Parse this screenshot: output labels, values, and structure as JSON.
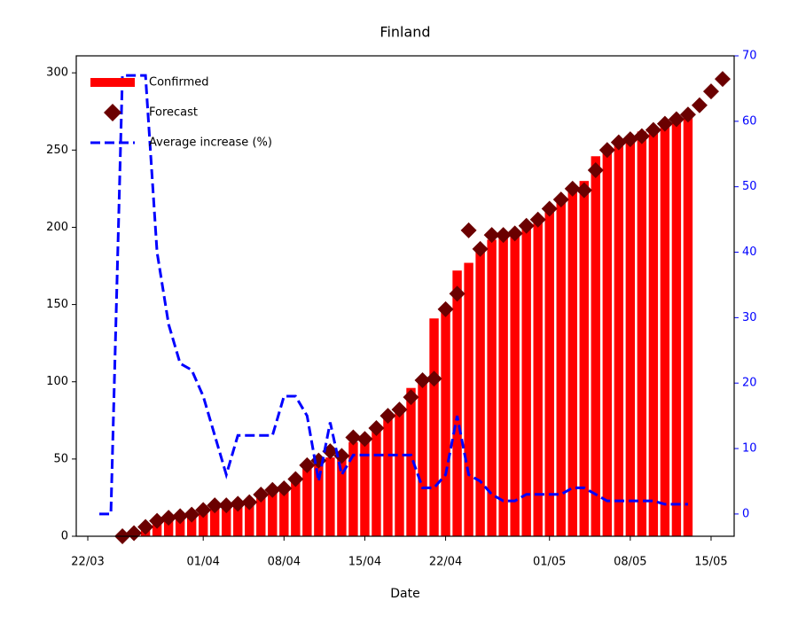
{
  "chart_data": {
    "type": "combo",
    "title": "Finland",
    "xlabel": "Date",
    "xlim": [
      "21/03",
      "17/05"
    ],
    "xticks": [
      "22/03",
      "01/04",
      "08/04",
      "15/04",
      "22/04",
      "01/05",
      "08/05",
      "15/05"
    ],
    "ylim": [
      0,
      311
    ],
    "yticks": [
      0,
      50,
      100,
      150,
      200,
      250,
      300
    ],
    "y2lim": [
      -3.4,
      70
    ],
    "y2ticks": [
      0,
      10,
      20,
      30,
      40,
      50,
      60,
      70
    ],
    "legend": "upper left",
    "series": [
      {
        "name": "Confirmed",
        "type": "bar",
        "color": "#ff0000",
        "x": [
          "25/03",
          "26/03",
          "27/03",
          "28/03",
          "29/03",
          "30/03",
          "31/03",
          "01/04",
          "02/04",
          "03/04",
          "04/04",
          "05/04",
          "06/04",
          "07/04",
          "08/04",
          "09/04",
          "10/04",
          "11/04",
          "12/04",
          "13/04",
          "14/04",
          "15/04",
          "16/04",
          "17/04",
          "18/04",
          "19/04",
          "20/04",
          "21/04",
          "22/04",
          "23/04",
          "24/04",
          "25/04",
          "26/04",
          "27/04",
          "28/04",
          "29/04",
          "30/04",
          "01/05",
          "02/05",
          "03/05",
          "04/05",
          "05/05",
          "06/05",
          "07/05",
          "08/05",
          "09/05",
          "10/05",
          "11/05",
          "12/05",
          "13/05"
        ],
        "values": [
          1,
          3,
          6,
          10,
          12,
          13,
          14,
          17,
          20,
          20,
          20,
          22,
          27,
          30,
          32,
          38,
          45,
          49,
          51,
          54,
          61,
          64,
          72,
          79,
          84,
          96,
          102,
          141,
          149,
          172,
          177,
          187,
          192,
          193,
          196,
          201,
          206,
          211,
          218,
          225,
          230,
          246,
          252,
          256,
          259,
          262,
          265,
          268,
          271,
          275
        ]
      },
      {
        "name": "Forecast",
        "type": "scatter",
        "color": "#6b0000",
        "x": [
          "25/03",
          "26/03",
          "27/03",
          "28/03",
          "29/03",
          "30/03",
          "31/03",
          "01/04",
          "02/04",
          "03/04",
          "04/04",
          "05/04",
          "06/04",
          "07/04",
          "08/04",
          "09/04",
          "10/04",
          "11/04",
          "12/04",
          "13/04",
          "14/04",
          "15/04",
          "16/04",
          "17/04",
          "18/04",
          "19/04",
          "20/04",
          "21/04",
          "22/04",
          "23/04",
          "24/04",
          "25/04",
          "26/04",
          "27/04",
          "28/04",
          "29/04",
          "30/04",
          "01/05",
          "02/05",
          "03/05",
          "04/05",
          "05/05",
          "06/05",
          "07/05",
          "08/05",
          "09/05",
          "10/05",
          "11/05",
          "12/05",
          "13/05",
          "14/05",
          "15/05",
          "16/05"
        ],
        "values": [
          0,
          2,
          6,
          10,
          12,
          13,
          14,
          17,
          20,
          20,
          21,
          22,
          27,
          30,
          31,
          37,
          46,
          49,
          55,
          52,
          64,
          63,
          70,
          78,
          82,
          90,
          101,
          102,
          147,
          157,
          198,
          186,
          195,
          195,
          196,
          201,
          205,
          212,
          218,
          225,
          224,
          237,
          250,
          255,
          257,
          259,
          263,
          267,
          270,
          273,
          279,
          288,
          296
        ]
      },
      {
        "name": "Average increase (%)",
        "type": "line",
        "axis": "y2",
        "color": "#0000ff",
        "x": [
          "23/03",
          "24/03",
          "25/03",
          "26/03",
          "27/03",
          "28/03",
          "29/03",
          "30/03",
          "31/03",
          "01/04",
          "02/04",
          "03/04",
          "04/04",
          "05/04",
          "06/04",
          "07/04",
          "08/04",
          "09/04",
          "10/04",
          "11/04",
          "12/04",
          "13/04",
          "14/04",
          "15/04",
          "16/04",
          "17/04",
          "18/04",
          "19/04",
          "20/04",
          "21/04",
          "22/04",
          "23/04",
          "24/04",
          "25/04",
          "26/04",
          "27/04",
          "28/04",
          "29/04",
          "30/04",
          "01/05",
          "02/05",
          "03/05",
          "04/05",
          "05/05",
          "06/05",
          "07/05",
          "08/05",
          "09/05",
          "10/05",
          "11/05",
          "12/05",
          "13/05"
        ],
        "values": [
          0,
          0,
          67,
          67,
          67,
          40,
          29,
          23,
          22,
          18,
          12,
          6,
          12,
          12,
          12,
          12,
          18,
          18,
          15,
          5,
          14,
          6,
          9,
          9,
          9,
          9,
          9,
          9,
          4,
          4,
          6,
          15,
          6,
          5,
          3,
          2,
          2,
          3,
          3,
          3,
          3,
          4,
          4,
          3,
          2,
          2,
          2,
          2,
          2,
          1.5,
          1.5,
          1.5
        ]
      }
    ]
  }
}
